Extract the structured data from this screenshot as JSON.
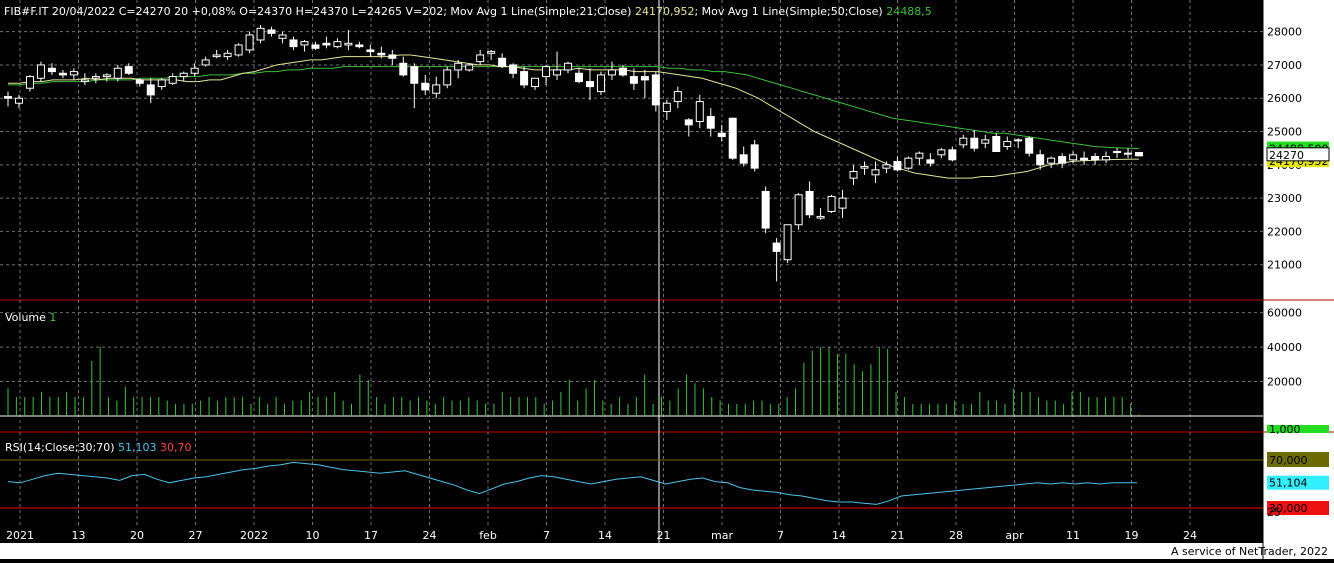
{
  "header": {
    "symbol_info": "FIB#F.IT 20/04/2022 C=24270 20 +0,08% O=24370 H=24370 L=24265 V=202;",
    "ma21_label": "Mov Avg 1 Line(Simple;21;Close)",
    "ma21_value": "24170,952",
    "ma50_label": "Mov Avg 1 Line(Simple;50;Close)",
    "ma50_value": "24488,5",
    "volume_label": "Volume",
    "volume_value": "1",
    "rsi_label": "RSI(14;Close;30;70)",
    "rsi_value": "51,103",
    "rsi_levels": "30,70"
  },
  "price_axis": {
    "ticks": [
      "28000",
      "27000",
      "26000",
      "25000",
      "24000",
      "23000",
      "22000",
      "21000"
    ],
    "last_price_tag": "24270",
    "ma50_tag": "24488,500",
    "ma21_tag": "24170,952"
  },
  "volume_axis": {
    "ticks": [
      "60000",
      "40000",
      "20000"
    ],
    "last_tag": "1,000"
  },
  "rsi_axis": {
    "upper_tag": "70,000",
    "value_tag": "51,104",
    "lower_tag": "30,000",
    "mid_tick": "25"
  },
  "x_axis": {
    "labels": [
      "2021",
      "13",
      "20",
      "27",
      "2022",
      "10",
      "17",
      "24",
      "feb",
      "7",
      "14",
      "21",
      "mar",
      "7",
      "14",
      "21",
      "28",
      "apr",
      "11",
      "19",
      "24"
    ]
  },
  "footer": "A service of NetTrader, 2022",
  "colors": {
    "background": "#000000",
    "grid": "#6e6e6e",
    "candle_up": "#ffffff",
    "candle_down": "#ffffff",
    "ma21": "#e5e59a",
    "ma50": "#3cbf3c",
    "volume": "#3ec43e",
    "rsi_line": "#4fc3e6",
    "rsi_upper": "#6b6b00",
    "rsi_lower": "#ff0000",
    "tag_green": "#22dd22",
    "tag_yellow": "#e6e600",
    "tag_cyan": "#33eeff",
    "tag_red": "#ee1111"
  },
  "chart_data": {
    "type": "candlestick",
    "title": "FIB#F.IT",
    "series": [
      {
        "name": "FIB#F.IT",
        "values": [
          [
            26050,
            26200,
            25750,
            26000
          ],
          [
            25850,
            26100,
            25700,
            26000
          ],
          [
            26300,
            26700,
            26200,
            26650
          ],
          [
            26600,
            27100,
            26500,
            27000
          ],
          [
            26900,
            27050,
            26700,
            26800
          ],
          [
            26750,
            26850,
            26600,
            26700
          ],
          [
            26700,
            26900,
            26550,
            26800
          ],
          [
            26500,
            26750,
            26400,
            26550
          ],
          [
            26600,
            26750,
            26450,
            26650
          ],
          [
            26650,
            26750,
            26500,
            26700
          ],
          [
            26600,
            27000,
            26500,
            26900
          ],
          [
            26950,
            27050,
            26700,
            26750
          ],
          [
            26550,
            26600,
            26350,
            26450
          ],
          [
            26400,
            26600,
            25850,
            26100
          ],
          [
            26350,
            26600,
            26250,
            26550
          ],
          [
            26450,
            26750,
            26400,
            26650
          ],
          [
            26650,
            26800,
            26500,
            26750
          ],
          [
            26750,
            27050,
            26650,
            26900
          ],
          [
            27000,
            27250,
            26950,
            27150
          ],
          [
            27250,
            27450,
            27200,
            27300
          ],
          [
            27250,
            27450,
            27150,
            27350
          ],
          [
            27300,
            27650,
            27250,
            27600
          ],
          [
            27450,
            28000,
            27350,
            27900
          ],
          [
            27750,
            28200,
            27650,
            28100
          ],
          [
            28050,
            28150,
            27850,
            27950
          ],
          [
            27800,
            28000,
            27650,
            27900
          ],
          [
            27750,
            27850,
            27450,
            27550
          ],
          [
            27600,
            27750,
            27400,
            27700
          ],
          [
            27600,
            27700,
            27450,
            27500
          ],
          [
            27650,
            27850,
            27500,
            27600
          ],
          [
            27550,
            27800,
            27500,
            27700
          ],
          [
            27600,
            28050,
            27450,
            27650
          ],
          [
            27600,
            27700,
            27500,
            27550
          ],
          [
            27450,
            27600,
            27250,
            27400
          ],
          [
            27350,
            27550,
            27200,
            27300
          ],
          [
            27300,
            27450,
            27000,
            27200
          ],
          [
            27050,
            27250,
            26650,
            26700
          ],
          [
            26950,
            27050,
            25700,
            26450
          ],
          [
            26450,
            26700,
            26100,
            26250
          ],
          [
            26150,
            26650,
            26000,
            26400
          ],
          [
            26400,
            26950,
            26300,
            26850
          ],
          [
            26850,
            27150,
            26600,
            27050
          ],
          [
            26850,
            27050,
            26800,
            27000
          ],
          [
            27100,
            27450,
            27000,
            27300
          ],
          [
            27350,
            27450,
            27150,
            27400
          ],
          [
            27200,
            27350,
            26900,
            26950
          ],
          [
            27000,
            27050,
            26600,
            26750
          ],
          [
            26800,
            26950,
            26300,
            26400
          ],
          [
            26350,
            26600,
            26250,
            26600
          ],
          [
            26650,
            27000,
            26400,
            26950
          ],
          [
            26700,
            27400,
            26550,
            26850
          ],
          [
            26850,
            27100,
            26750,
            27050
          ],
          [
            26750,
            26900,
            26450,
            26500
          ],
          [
            26500,
            26900,
            25950,
            26350
          ],
          [
            26200,
            26800,
            26100,
            26700
          ],
          [
            26700,
            27100,
            26550,
            26850
          ],
          [
            26900,
            27000,
            26650,
            26700
          ],
          [
            26650,
            26900,
            26250,
            26450
          ],
          [
            26650,
            26850,
            26000,
            26550
          ],
          [
            26700,
            26800,
            25600,
            25800
          ],
          [
            25600,
            25950,
            25350,
            25850
          ],
          [
            25900,
            26350,
            25700,
            26200
          ],
          [
            25350,
            25400,
            24850,
            25200
          ],
          [
            25300,
            26100,
            25100,
            25900
          ],
          [
            25450,
            25700,
            24850,
            25100
          ],
          [
            24950,
            25200,
            24700,
            24850
          ],
          [
            25400,
            25400,
            24150,
            24200
          ],
          [
            24300,
            24550,
            23950,
            24050
          ],
          [
            24600,
            24750,
            23800,
            23900
          ],
          [
            23200,
            23350,
            21950,
            22100
          ],
          [
            21650,
            21800,
            20500,
            21400
          ],
          [
            21150,
            22200,
            21050,
            22200
          ],
          [
            22200,
            23150,
            22050,
            23100
          ],
          [
            23200,
            23500,
            22400,
            22500
          ],
          [
            22400,
            22700,
            22350,
            22450
          ],
          [
            22600,
            23100,
            22550,
            23050
          ],
          [
            22700,
            23250,
            22400,
            23000
          ],
          [
            23600,
            24000,
            23400,
            23800
          ],
          [
            23900,
            24100,
            23700,
            23950
          ],
          [
            23700,
            24100,
            23450,
            23850
          ],
          [
            23900,
            24100,
            23750,
            24000
          ],
          [
            24100,
            24250,
            23800,
            23850
          ],
          [
            23900,
            24250,
            23850,
            24200
          ],
          [
            24200,
            24400,
            24000,
            24350
          ],
          [
            24150,
            24350,
            23950,
            24050
          ],
          [
            24300,
            24500,
            24200,
            24450
          ],
          [
            24450,
            24550,
            24100,
            24150
          ],
          [
            24600,
            24900,
            24500,
            24800
          ],
          [
            24800,
            25050,
            24400,
            24500
          ],
          [
            24650,
            24900,
            24500,
            24750
          ],
          [
            24850,
            24950,
            24400,
            24400
          ],
          [
            24550,
            24850,
            24450,
            24700
          ],
          [
            24750,
            24800,
            24500,
            24750
          ],
          [
            24800,
            24850,
            24250,
            24350
          ],
          [
            24300,
            24450,
            23850,
            24000
          ],
          [
            24050,
            24250,
            23900,
            24200
          ],
          [
            24250,
            24350,
            23900,
            24050
          ],
          [
            24150,
            24400,
            24050,
            24300
          ],
          [
            24200,
            24400,
            24000,
            24150
          ],
          [
            24250,
            24350,
            24000,
            24150
          ],
          [
            24150,
            24400,
            24050,
            24250
          ],
          [
            24400,
            24500,
            24200,
            24400
          ],
          [
            24350,
            24500,
            24200,
            24350
          ],
          [
            24370,
            24370,
            24265,
            24270
          ]
        ]
      },
      {
        "name": "Mov Avg 1 Line(Simple;21;Close)",
        "values": [
          26450,
          26450,
          26500,
          26500,
          26550,
          26550,
          26550,
          26600,
          26550,
          26600,
          26600,
          26600,
          26550,
          26550,
          26550,
          26550,
          26500,
          26500,
          26550,
          26550,
          26650,
          26750,
          26800,
          26900,
          27000,
          27050,
          27100,
          27150,
          27150,
          27200,
          27250,
          27250,
          27250,
          27250,
          27250,
          27300,
          27300,
          27250,
          27200,
          27150,
          27100,
          27050,
          27000,
          27000,
          26950,
          26950,
          26900,
          26850,
          26850,
          26850,
          26850,
          26900,
          26850,
          26850,
          26850,
          26850,
          26800,
          26800,
          26800,
          26750,
          26700,
          26650,
          26600,
          26500,
          26400,
          26300,
          26150,
          26000,
          25800,
          25600,
          25400,
          25200,
          25000,
          24850,
          24700,
          24550,
          24400,
          24250,
          24100,
          23950,
          23850,
          23750,
          23700,
          23650,
          23600,
          23600,
          23600,
          23650,
          23650,
          23700,
          23750,
          23800,
          23900,
          24000,
          24050,
          24100,
          24120,
          24140,
          24150,
          24160,
          24170,
          24171
        ]
      },
      {
        "name": "Mov Avg 1 Line(Simple;50;Close)",
        "values": [
          26400,
          26400,
          26450,
          26450,
          26500,
          26500,
          26500,
          26500,
          26550,
          26550,
          26550,
          26550,
          26600,
          26600,
          26600,
          26650,
          26650,
          26650,
          26700,
          26700,
          26700,
          26750,
          26750,
          26800,
          26800,
          26850,
          26850,
          26900,
          26900,
          26900,
          26950,
          26950,
          26950,
          26950,
          26950,
          26950,
          26950,
          26950,
          26950,
          26950,
          26950,
          26950,
          26950,
          26950,
          26950,
          26950,
          26950,
          26950,
          26950,
          26950,
          26950,
          26950,
          26950,
          26950,
          26950,
          26950,
          26950,
          26950,
          26950,
          26900,
          26900,
          26850,
          26850,
          26800,
          26800,
          26750,
          26700,
          26600,
          26500,
          26400,
          26300,
          26200,
          26100,
          26000,
          25900,
          25800,
          25700,
          25600,
          25500,
          25400,
          25350,
          25300,
          25250,
          25200,
          25150,
          25100,
          25050,
          25000,
          24950,
          24950,
          24900,
          24850,
          24800,
          24750,
          24700,
          24650,
          24600,
          24550,
          24530,
          24510,
          24495,
          24488.5
        ]
      }
    ],
    "volume": [
      16000,
      11000,
      11000,
      11000,
      14000,
      11000,
      11000,
      14000,
      11000,
      11000,
      32000,
      40000,
      11000,
      9000,
      17000,
      11000,
      11000,
      11000,
      11000,
      9000,
      7000,
      7000,
      7000,
      9000,
      11000,
      9000,
      11000,
      11000,
      11000,
      7000,
      11000,
      7000,
      11000,
      7000,
      9000,
      9000,
      14000,
      11000,
      11000,
      14000,
      9000,
      7000,
      24000,
      21000,
      11000,
      7000,
      11000,
      11000,
      9000,
      11000,
      9000,
      7000,
      11000,
      9000,
      9000,
      11000,
      9000,
      7000,
      7000,
      14000,
      11000,
      11000,
      11000,
      11000,
      7000,
      9000,
      14000,
      21000,
      9000,
      16000,
      21000,
      9000,
      7000,
      11000,
      7000,
      11000,
      24000,
      7000,
      11000,
      9000,
      16000,
      24000,
      19000,
      16000,
      11000,
      9000,
      7000,
      7000,
      7000,
      9000,
      9000,
      7000,
      7000,
      11000,
      16000,
      31000,
      38000,
      40000,
      40000,
      36000,
      36000,
      30000,
      26000,
      30000,
      40000,
      39000,
      14000,
      11000,
      7000,
      7000,
      7000,
      7000,
      7000,
      9000,
      7000,
      7000,
      14000,
      9000,
      9000,
      7000,
      16000,
      14000,
      14000,
      11000,
      9000,
      9000,
      7000,
      14000,
      14000,
      11000,
      11000,
      11000,
      11000,
      11000,
      7000,
      1000
    ],
    "rsi": [
      52,
      51,
      54,
      57,
      59,
      58,
      57,
      56,
      55,
      53,
      57,
      58,
      54,
      51,
      53,
      55,
      56,
      58,
      60,
      62,
      63,
      65,
      66,
      68,
      67,
      66,
      64,
      62,
      61,
      60,
      59,
      60,
      61,
      58,
      55,
      52,
      49,
      45,
      42,
      46,
      50,
      52,
      55,
      57,
      56,
      54,
      52,
      50,
      52,
      54,
      55,
      56,
      53,
      50,
      52,
      54,
      55,
      52,
      51,
      47,
      45,
      44,
      43,
      41,
      40,
      38,
      36,
      35,
      35,
      34,
      33,
      36,
      40,
      41,
      42,
      43,
      44,
      45,
      46,
      47,
      48,
      49,
      50,
      51,
      50,
      51,
      50,
      51,
      50,
      51,
      51,
      51
    ],
    "rsi_levels": {
      "upper": 70,
      "lower": 30
    },
    "x_labels": [
      "2021",
      "13",
      "20",
      "27",
      "2022",
      "10",
      "17",
      "24",
      "feb",
      "7",
      "14",
      "21",
      "mar",
      "7",
      "14",
      "21",
      "28",
      "apr",
      "11",
      "19",
      "24"
    ],
    "price_ylim": [
      20000,
      28500
    ],
    "volume_ylim": [
      0,
      65000
    ],
    "rsi_ylim": [
      20,
      80
    ],
    "grid": true
  }
}
